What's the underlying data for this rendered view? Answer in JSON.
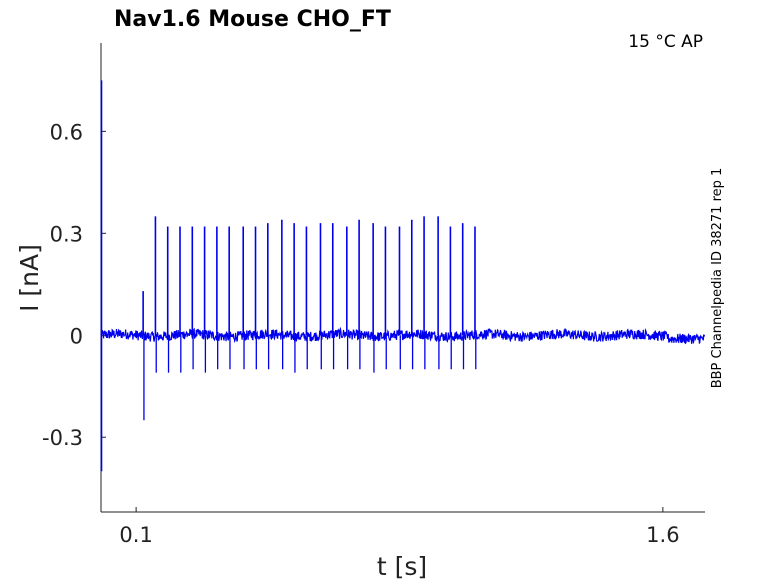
{
  "chart_data": {
    "type": "line",
    "title": "Nav1.6  Mouse  CHO_FT",
    "corner_label": "15 °C  AP",
    "side_label": "BBP Channelpedia ID 38271 rep 1",
    "xlabel": "t [s]",
    "ylabel": "I [nA]",
    "xlim": [
      0.0,
      1.72
    ],
    "ylim": [
      -0.52,
      0.86
    ],
    "x_ticks": [
      0.1,
      1.6
    ],
    "x_tick_labels": [
      "0.1",
      "1.6"
    ],
    "y_ticks": [
      0.6,
      0.3,
      0,
      -0.3
    ],
    "y_tick_labels": [
      "0.6",
      "0.3",
      "0",
      "-0.3"
    ],
    "grid": false,
    "color": "#0000ee",
    "series": [
      {
        "baseline": 0.0,
        "baseline_after_stimulus": -0.01,
        "stimulus_end": 1.615,
        "initial_transient": {
          "t": 0.0,
          "max": 0.75,
          "min": -0.4
        },
        "spikes": [
          {
            "t": 0.12,
            "peak": 0.13,
            "trough": -0.25
          },
          {
            "t": 0.155,
            "peak": 0.35,
            "trough": -0.11
          },
          {
            "t": 0.19,
            "peak": 0.32,
            "trough": -0.11
          },
          {
            "t": 0.225,
            "peak": 0.32,
            "trough": -0.11
          },
          {
            "t": 0.26,
            "peak": 0.32,
            "trough": -0.1
          },
          {
            "t": 0.295,
            "peak": 0.32,
            "trough": -0.11
          },
          {
            "t": 0.33,
            "peak": 0.32,
            "trough": -0.1
          },
          {
            "t": 0.365,
            "peak": 0.32,
            "trough": -0.1
          },
          {
            "t": 0.405,
            "peak": 0.32,
            "trough": -0.1
          },
          {
            "t": 0.44,
            "peak": 0.32,
            "trough": -0.1
          },
          {
            "t": 0.475,
            "peak": 0.33,
            "trough": -0.1
          },
          {
            "t": 0.515,
            "peak": 0.34,
            "trough": -0.1
          },
          {
            "t": 0.55,
            "peak": 0.33,
            "trough": -0.11
          },
          {
            "t": 0.585,
            "peak": 0.32,
            "trough": -0.1
          },
          {
            "t": 0.625,
            "peak": 0.33,
            "trough": -0.1
          },
          {
            "t": 0.66,
            "peak": 0.33,
            "trough": -0.1
          },
          {
            "t": 0.7,
            "peak": 0.32,
            "trough": -0.1
          },
          {
            "t": 0.735,
            "peak": 0.34,
            "trough": -0.1
          },
          {
            "t": 0.775,
            "peak": 0.33,
            "trough": -0.11
          },
          {
            "t": 0.81,
            "peak": 0.32,
            "trough": -0.1
          },
          {
            "t": 0.85,
            "peak": 0.32,
            "trough": -0.1
          },
          {
            "t": 0.885,
            "peak": 0.34,
            "trough": -0.1
          },
          {
            "t": 0.92,
            "peak": 0.35,
            "trough": -0.1
          },
          {
            "t": 0.96,
            "peak": 0.35,
            "trough": -0.1
          },
          {
            "t": 0.995,
            "peak": 0.32,
            "trough": -0.1
          },
          {
            "t": 1.03,
            "peak": 0.33,
            "trough": -0.1
          },
          {
            "t": 1.065,
            "peak": 0.32,
            "trough": -0.1
          }
        ]
      }
    ]
  }
}
